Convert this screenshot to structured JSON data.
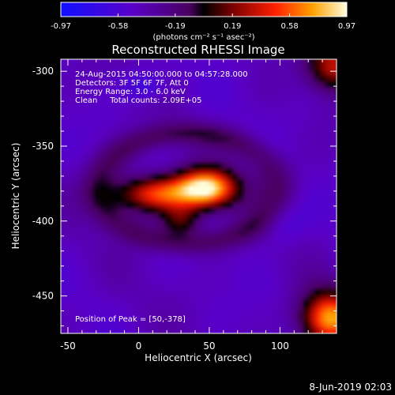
{
  "colorbar": {
    "ticks": [
      "-0.97",
      "-0.58",
      "-0.19",
      "0.19",
      "0.58",
      "0.97"
    ],
    "unit_label": "(photons cm⁻² s⁻¹ asec⁻²)",
    "range": [
      -0.97,
      0.97
    ]
  },
  "chart_data": {
    "type": "heatmap",
    "title": "Reconstructed RHESSI Image",
    "xlabel": "Heliocentric X (arcsec)",
    "ylabel": "Heliocentric Y (arcsec)",
    "xlim": [
      -55,
      140
    ],
    "ylim": [
      -475,
      -292
    ],
    "x_ticks": [
      -50,
      0,
      50,
      100
    ],
    "y_ticks": [
      -300,
      -350,
      -400,
      -450
    ],
    "info_lines": [
      "24-Aug-2015 04:50:00.000 to 04:57:28.000",
      "Detectors: 3F 5F 6F 7F, Att 0",
      "Energy Range: 3.0 - 6.0 keV",
      "Clean     Total counts: 2.09E+05"
    ],
    "peak_label": "Position of Peak = [50,-378]",
    "peak": [
      50,
      -378
    ],
    "sources": [
      {
        "x": 50,
        "y": -378,
        "intensity": 0.97
      },
      {
        "x": 10,
        "y": -380,
        "intensity": 0.55
      },
      {
        "x": 130,
        "y": -462,
        "intensity": 0.7
      },
      {
        "x": 130,
        "y": -298,
        "intensity": 0.45
      }
    ],
    "background_level": -0.45
  },
  "footer_date": "8-Jun-2019 02:03"
}
